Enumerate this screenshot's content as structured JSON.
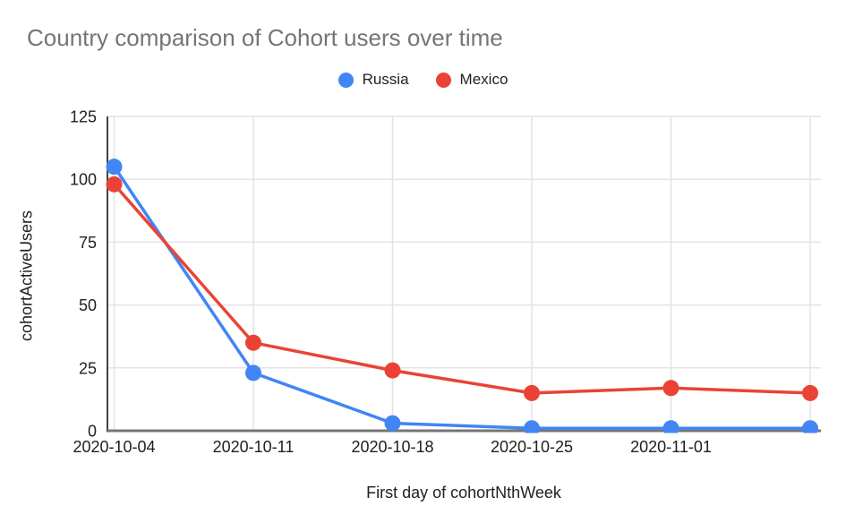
{
  "page": {
    "background": "#ffffff"
  },
  "chart_data": {
    "type": "line",
    "title": "Country comparison of Cohort users over time",
    "xlabel": "First day of cohortNthWeek",
    "ylabel": "cohortActiveUsers",
    "x_tick_labels": [
      "2020-10-04",
      "2020-10-11",
      "2020-10-18",
      "2020-10-25",
      "2020-11-01",
      ""
    ],
    "series": [
      {
        "name": "Russia",
        "color": "#4285F4",
        "values": [
          105,
          23,
          3,
          1,
          1,
          1
        ]
      },
      {
        "name": "Mexico",
        "color": "#EA4335",
        "values": [
          98,
          35,
          24,
          15,
          17,
          15
        ]
      }
    ],
    "ylim": [
      0,
      125
    ],
    "yticks": [
      0,
      25,
      50,
      75,
      100,
      125
    ],
    "grid": true,
    "legend_position": "top-center",
    "colors": {
      "grid_line": "#e3e3e3",
      "y_axis_line": "#424242",
      "x_axis_line": "#757575",
      "tick_text": "#212121",
      "title_text": "#757575"
    }
  }
}
